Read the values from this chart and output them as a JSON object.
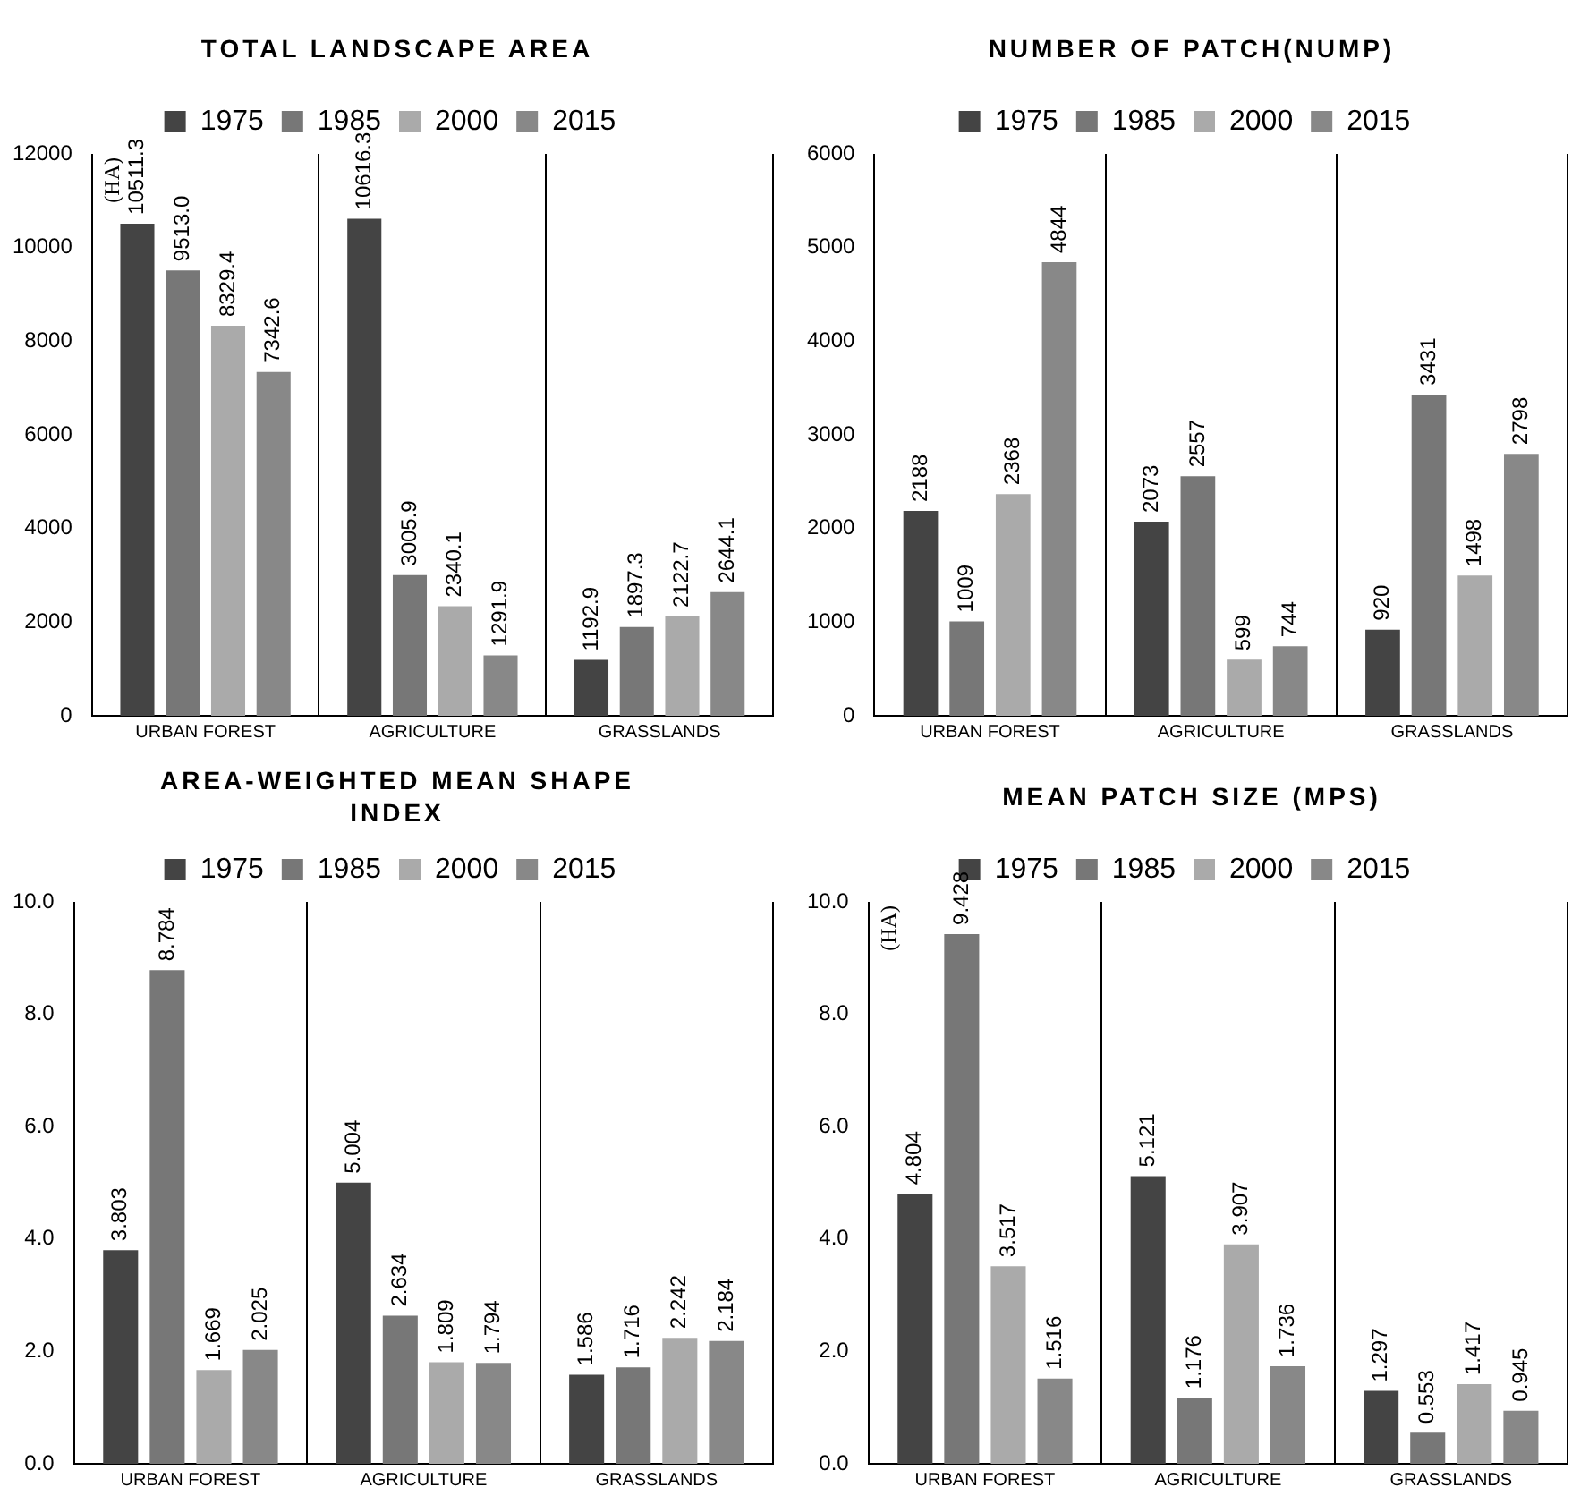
{
  "chart_data": [
    {
      "type": "bar",
      "title": "TOTAL LANDSCAPE AREA",
      "categories": [
        "URBAN FOREST",
        "AGRICULTURE",
        "GRASSLANDS"
      ],
      "legend": "top",
      "grid": "x",
      "ylim": [
        0,
        12000
      ],
      "yticks": [
        0,
        2000,
        4000,
        6000,
        8000,
        10000,
        12000
      ],
      "annotations": [
        "(HA)"
      ],
      "series": [
        {
          "name": "1975",
          "color": "#444444",
          "values": [
            10511.3,
            10616.3,
            1192.9
          ],
          "value_labels": [
            "10511.3",
            "10616.3",
            "1192.9"
          ]
        },
        {
          "name": "1985",
          "color": "#777777",
          "values": [
            9513.0,
            3005.9,
            1897.3
          ],
          "value_labels": [
            "9513.0",
            "3005.9",
            "1897.3"
          ]
        },
        {
          "name": "2000",
          "color": "#aaaaaa",
          "values": [
            8329.4,
            2340.1,
            2122.7
          ],
          "value_labels": [
            "8329.4",
            "2340.1",
            "2122.7"
          ]
        },
        {
          "name": "2015",
          "color": "#888888",
          "values": [
            7342.6,
            1291.9,
            2644.1
          ],
          "value_labels": [
            "7342.6",
            "1291.9",
            "2644.1"
          ]
        }
      ]
    },
    {
      "type": "bar",
      "title": "NUMBER OF PATCH(NUMP)",
      "categories": [
        "URBAN FOREST",
        "AGRICULTURE",
        "GRASSLANDS"
      ],
      "legend": "top",
      "grid": "x",
      "ylim": [
        0,
        6000
      ],
      "yticks": [
        0,
        1000,
        2000,
        3000,
        4000,
        5000,
        6000
      ],
      "series": [
        {
          "name": "1975",
          "color": "#444444",
          "values": [
            2188,
            2073,
            920
          ],
          "value_labels": [
            "2188",
            "2073",
            "920"
          ]
        },
        {
          "name": "1985",
          "color": "#777777",
          "values": [
            1009,
            2557,
            3431
          ],
          "value_labels": [
            "1009",
            "2557",
            "3431"
          ]
        },
        {
          "name": "2000",
          "color": "#aaaaaa",
          "values": [
            2368,
            599,
            1498
          ],
          "value_labels": [
            "2368",
            "599",
            "1498"
          ]
        },
        {
          "name": "2015",
          "color": "#888888",
          "values": [
            4844,
            744,
            2798
          ],
          "value_labels": [
            "4844",
            "744",
            "2798"
          ]
        }
      ]
    },
    {
      "type": "bar",
      "title": "AREA-WEIGHTED MEAN SHAPE INDEX",
      "categories": [
        "URBAN FOREST",
        "AGRICULTURE",
        "GRASSLANDS"
      ],
      "legend": "top",
      "grid": "x",
      "ylim": [
        0,
        10
      ],
      "yticks": [
        {
          "value": 0,
          "label": "0.0"
        },
        {
          "value": 2,
          "label": "2.0"
        },
        {
          "value": 4,
          "label": "4.0"
        },
        {
          "value": 6,
          "label": "6.0"
        },
        {
          "value": 8,
          "label": "8.0"
        },
        {
          "value": 10,
          "label": "10.0"
        }
      ],
      "series": [
        {
          "name": "1975",
          "color": "#444444",
          "values": [
            3.803,
            5.004,
            1.586
          ],
          "value_labels": [
            "3.803",
            "5.004",
            "1.586"
          ]
        },
        {
          "name": "1985",
          "color": "#777777",
          "values": [
            8.784,
            2.634,
            1.716
          ],
          "value_labels": [
            "8.784",
            "2.634",
            "1.716"
          ]
        },
        {
          "name": "2000",
          "color": "#aaaaaa",
          "values": [
            1.669,
            1.809,
            2.242
          ],
          "value_labels": [
            "1.669",
            "1.809",
            "2.242"
          ]
        },
        {
          "name": "2015",
          "color": "#888888",
          "values": [
            2.025,
            1.794,
            2.184
          ],
          "value_labels": [
            "2.025",
            "1.794",
            "2.184"
          ]
        }
      ]
    },
    {
      "type": "bar",
      "title": "MEAN PATCH SIZE (MPS)",
      "categories": [
        "URBAN FOREST",
        "AGRICULTURE",
        "GRASSLANDS"
      ],
      "legend": "top",
      "grid": "x",
      "ylim": [
        0,
        10
      ],
      "yticks": [
        {
          "value": 0,
          "label": "0.0"
        },
        {
          "value": 2,
          "label": "2.0"
        },
        {
          "value": 4,
          "label": "4.0"
        },
        {
          "value": 6,
          "label": "6.0"
        },
        {
          "value": 8,
          "label": "8.0"
        },
        {
          "value": 10,
          "label": "10.0"
        }
      ],
      "annotations": [
        "(HA)"
      ],
      "series": [
        {
          "name": "1975",
          "color": "#444444",
          "values": [
            4.804,
            5.121,
            1.297
          ],
          "value_labels": [
            "4.804",
            "5.121",
            "1.297"
          ]
        },
        {
          "name": "1985",
          "color": "#777777",
          "values": [
            9.428,
            1.176,
            0.553
          ],
          "value_labels": [
            "9.428",
            "1.176",
            "0.553"
          ]
        },
        {
          "name": "2000",
          "color": "#aaaaaa",
          "values": [
            3.517,
            3.907,
            1.417
          ],
          "value_labels": [
            "3.517",
            "3.907",
            "1.417"
          ]
        },
        {
          "name": "2015",
          "color": "#888888",
          "values": [
            1.516,
            1.736,
            0.945
          ],
          "value_labels": [
            "1.516",
            "1.736",
            "0.945"
          ]
        }
      ]
    }
  ]
}
